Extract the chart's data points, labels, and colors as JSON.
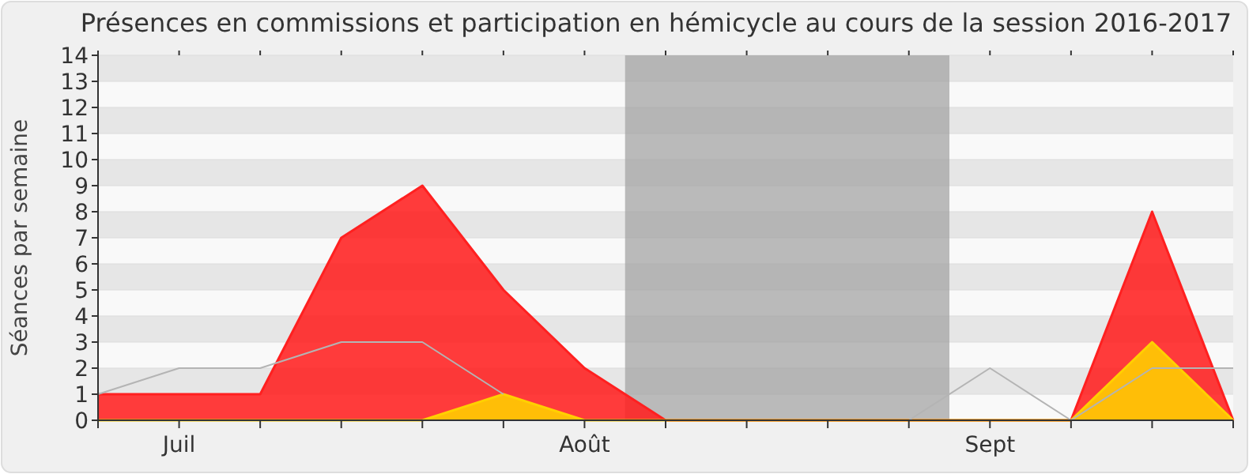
{
  "chart_data": {
    "type": "area",
    "title": "Présences en commissions et participation en hémicycle au cours de la session 2016-2017",
    "ylabel": "Séances par semaine",
    "categories": [
      null,
      "Juil",
      null,
      null,
      null,
      null,
      "Août",
      null,
      null,
      null,
      null,
      "Sept",
      null,
      null,
      null
    ],
    "series": [
      {
        "type": "line",
        "color": "#b4b4b4",
        "values": [
          1,
          2,
          2,
          3,
          3,
          1,
          null,
          null,
          null,
          null,
          0,
          2,
          0,
          2,
          2
        ]
      },
      {
        "color": "#ff2020",
        "values": [
          1,
          1,
          1,
          7,
          9,
          5,
          2,
          0,
          0,
          0,
          0,
          0,
          0,
          8,
          0
        ]
      },
      {
        "color": "#ffd000",
        "values": [
          0,
          0,
          0,
          0,
          0,
          1,
          0,
          0,
          0,
          0,
          0,
          0,
          0,
          3,
          0
        ]
      }
    ],
    "ylim": [
      0,
      14
    ],
    "yticks": [
      0,
      1,
      2,
      3,
      4,
      5,
      6,
      7,
      8,
      9,
      10,
      11,
      12,
      13,
      14
    ],
    "grid": "y"
  }
}
